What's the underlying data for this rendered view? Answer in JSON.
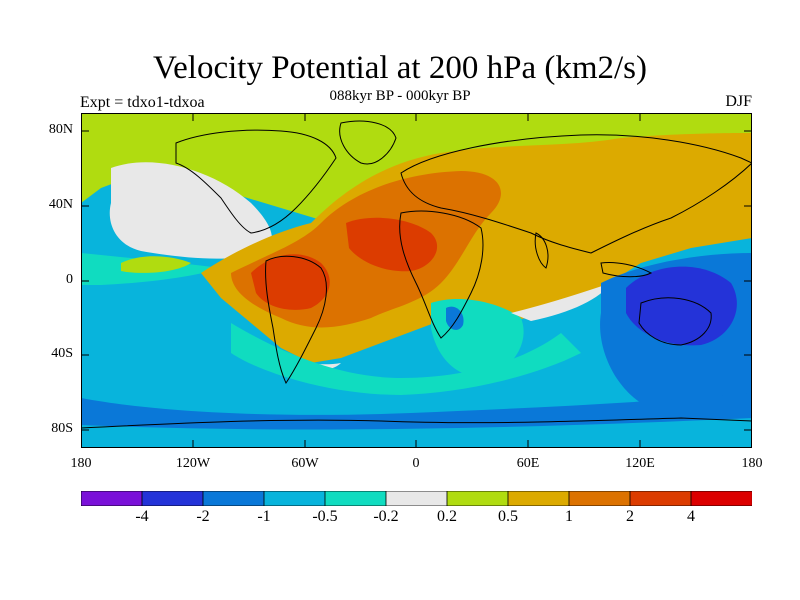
{
  "title": "Velocity Potential at 200 hPa (km2/s)",
  "subtitle": "088kyr BP - 000kyr BP",
  "experiment_label": "Expt = tdxo1-tdxoa",
  "season": "DJF",
  "lat_ticks": [
    "80N",
    "40N",
    "0",
    "40S",
    "80S"
  ],
  "lon_ticks": [
    "180",
    "120W",
    "60W",
    "0",
    "60E",
    "120E",
    "180"
  ],
  "colorbar": {
    "colors": [
      "#7a10d8",
      "#2433d8",
      "#0a78d8",
      "#08b4dc",
      "#10dcc0",
      "#e8e8e8",
      "#b0dc10",
      "#dcaa00",
      "#dc7200",
      "#dc3c00",
      "#dc0000"
    ],
    "labels": [
      "-4",
      "-2",
      "-1",
      "-0.5",
      "-0.2",
      "0.2",
      "0.5",
      "1",
      "2",
      "4"
    ]
  }
}
